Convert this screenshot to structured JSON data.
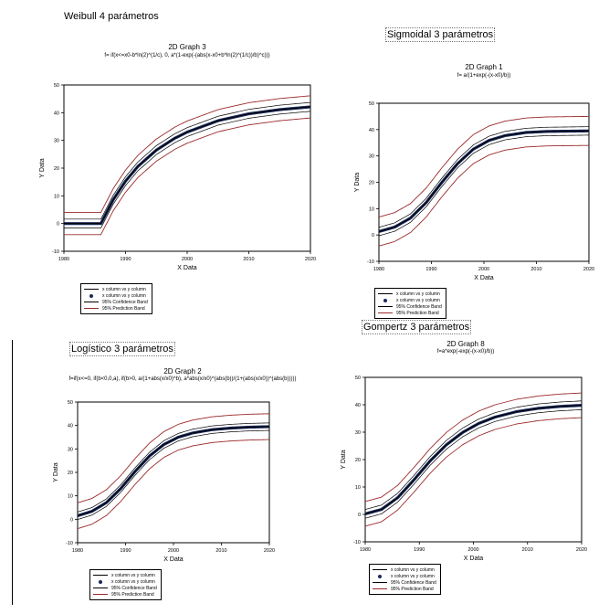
{
  "charts": [
    {
      "panel_title": "Weibull 4 parámetros",
      "graph_title": "2D Graph 3",
      "formula": "f= if(x<=x0-b*ln(2)^(1/c), 0, a*(1-exp(-(abs(x-x0+b*ln(2)^(1/c))/b)^c)))",
      "xlabel": "X Data",
      "ylabel": "Y Data",
      "legend": [
        "x column vs y column",
        "x column vs y column",
        "95% Confidence Band",
        "95% Prediction Band"
      ]
    },
    {
      "panel_title": "Sigmoidal 3 parámetros",
      "graph_title": "2D Graph 1",
      "formula": "f= a/(1+exp(-(x-x0)/b))",
      "xlabel": "X Data",
      "ylabel": "Y Data",
      "legend": [
        "x column vs y column",
        "x column vs y column",
        "95% Confidence Band",
        "95% Prediction Band"
      ]
    },
    {
      "panel_title": "Logístico 3 parámetros",
      "graph_title": "2D Graph 2",
      "formula": "f=if(x<=0, if(b<0,0,a), if(b>0, a/(1+abs(x/x0)^b), a*abs(x/x0)^(abs(b))/(1+(abs(x/x0))^(abs(b)))))",
      "xlabel": "X Data",
      "ylabel": "Y Data",
      "legend": [
        "x column vs y column",
        "x column vs y column",
        "95% Confidence Band",
        "95% Prediction Band"
      ]
    },
    {
      "panel_title": "Gompertz 3 parámetros",
      "graph_title": "2D Graph 8",
      "formula": "f=a*exp(-exp(-(x-x0)/b))",
      "xlabel": "X Data",
      "ylabel": "Y Data",
      "legend": [
        "x column vs y column",
        "x column vs y column",
        "95% Confidence Band",
        "95% Prediction Band"
      ]
    }
  ],
  "chart_data": [
    {
      "type": "line",
      "model": "weibull",
      "xlim": [
        1980,
        2020
      ],
      "ylim": [
        -10,
        50
      ],
      "xticks": [
        "1980",
        "1990",
        "2000",
        "2010",
        "2020"
      ],
      "yticks": [
        "-10",
        "0",
        "10",
        "20",
        "30",
        "40",
        "50"
      ],
      "x": [
        1980,
        1985,
        1986,
        1988,
        1990,
        1992,
        1995,
        1998,
        2000,
        2005,
        2010,
        2015,
        2020
      ],
      "fit": [
        0,
        0,
        0,
        8.6,
        15.3,
        20.6,
        26.5,
        30.8,
        33.0,
        37.1,
        39.6,
        41.1,
        42.1
      ],
      "confidence_band": 1.6,
      "prediction_band": 4.0,
      "legend_position": "bottom-left"
    },
    {
      "type": "line",
      "model": "sigmoidal",
      "xlim": [
        1980,
        2020
      ],
      "ylim": [
        -10,
        50
      ],
      "xticks": [
        "1980",
        "1990",
        "2000",
        "2010",
        "2020"
      ],
      "yticks": [
        "-10",
        "0",
        "10",
        "20",
        "30",
        "40",
        "50"
      ],
      "x": [
        1980,
        1983,
        1986,
        1989,
        1992,
        1995,
        1998,
        2001,
        2004,
        2008,
        2012,
        2016,
        2020
      ],
      "fit": [
        1.3,
        3.0,
        6.4,
        12.3,
        20.0,
        27.1,
        32.6,
        35.9,
        37.7,
        38.9,
        39.3,
        39.4,
        39.5
      ],
      "confidence_band": 1.6,
      "prediction_band": 5.5,
      "legend_position": "bottom-left"
    },
    {
      "type": "line",
      "model": "logistic",
      "xlim": [
        1980,
        2020
      ],
      "ylim": [
        -10,
        50
      ],
      "xticks": [
        "1980",
        "1990",
        "2000",
        "2010",
        "2020"
      ],
      "yticks": [
        "-10",
        "0",
        "10",
        "20",
        "30",
        "40",
        "50"
      ],
      "x": [
        1980,
        1983,
        1986,
        1989,
        1992,
        1995,
        1998,
        2001,
        2004,
        2008,
        2012,
        2016,
        2020
      ],
      "fit": [
        1.5,
        3.4,
        7.1,
        13.1,
        20.4,
        27.0,
        31.9,
        35.0,
        36.8,
        38.2,
        38.9,
        39.3,
        39.5
      ],
      "confidence_band": 1.6,
      "prediction_band": 5.5,
      "legend_position": "bottom-left"
    },
    {
      "type": "line",
      "model": "gompertz",
      "xlim": [
        1980,
        2020
      ],
      "ylim": [
        -10,
        50
      ],
      "xticks": [
        "1980",
        "1990",
        "2000",
        "2010",
        "2020"
      ],
      "yticks": [
        "-10",
        "0",
        "10",
        "20",
        "30",
        "40",
        "50"
      ],
      "x": [
        1980,
        1983,
        1986,
        1989,
        1992,
        1995,
        1998,
        2001,
        2004,
        2008,
        2012,
        2016,
        2020
      ],
      "fit": [
        0.2,
        1.8,
        6.1,
        12.6,
        19.5,
        25.4,
        29.9,
        33.2,
        35.5,
        37.5,
        38.7,
        39.4,
        39.8
      ],
      "confidence_band": 1.6,
      "prediction_band": 4.5,
      "legend_position": "bottom-left"
    }
  ],
  "colors": {
    "fit": "#000000",
    "points": "#1a2a5a",
    "confidence": "#000000",
    "prediction": "#9b2a2a"
  }
}
